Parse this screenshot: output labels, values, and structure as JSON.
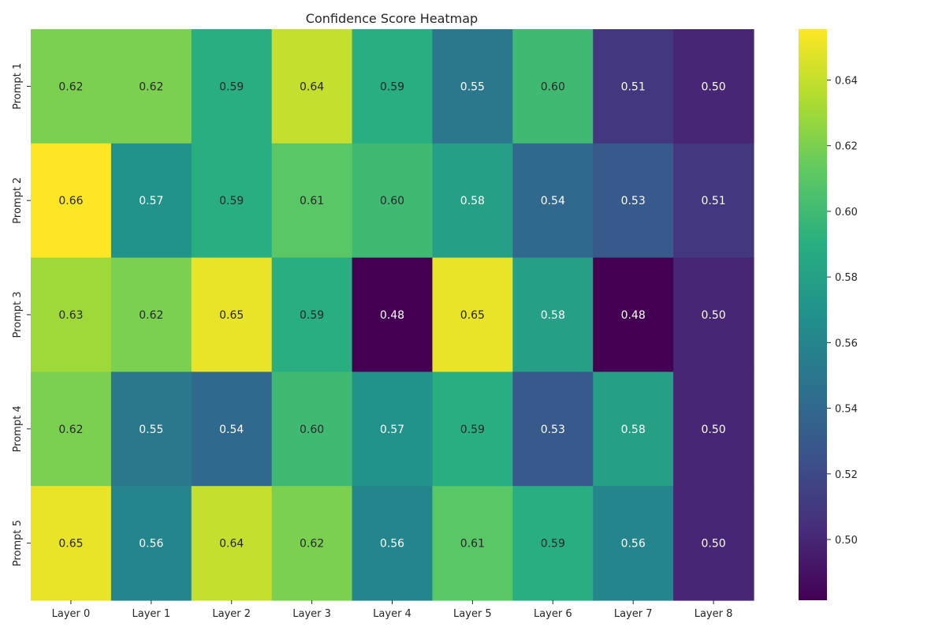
{
  "chart_data": {
    "type": "heatmap",
    "title": "Confidence Score Heatmap",
    "xlabel": "",
    "ylabel": "",
    "x_categories": [
      "Layer 0",
      "Layer 1",
      "Layer 2",
      "Layer 3",
      "Layer 4",
      "Layer 5",
      "Layer 6",
      "Layer 7",
      "Layer 8"
    ],
    "y_categories": [
      "Prompt 1",
      "Prompt 2",
      "Prompt 3",
      "Prompt 4",
      "Prompt 5"
    ],
    "values": [
      [
        0.62,
        0.62,
        0.59,
        0.64,
        0.59,
        0.55,
        0.6,
        0.51,
        0.5
      ],
      [
        0.66,
        0.57,
        0.59,
        0.61,
        0.6,
        0.58,
        0.54,
        0.53,
        0.51
      ],
      [
        0.63,
        0.62,
        0.65,
        0.59,
        0.48,
        0.65,
        0.58,
        0.48,
        0.5
      ],
      [
        0.62,
        0.55,
        0.54,
        0.6,
        0.57,
        0.59,
        0.53,
        0.58,
        0.5
      ],
      [
        0.65,
        0.56,
        0.64,
        0.62,
        0.56,
        0.61,
        0.59,
        0.56,
        0.5
      ]
    ],
    "annotation_format": "2 decimals",
    "colormap": "viridis",
    "color_range": [
      0.4815,
      0.6555
    ],
    "colorbar_ticks": [
      0.5,
      0.52,
      0.54,
      0.56,
      0.58,
      0.6,
      0.62,
      0.64
    ],
    "colorbar_position": "right",
    "grid": false
  }
}
